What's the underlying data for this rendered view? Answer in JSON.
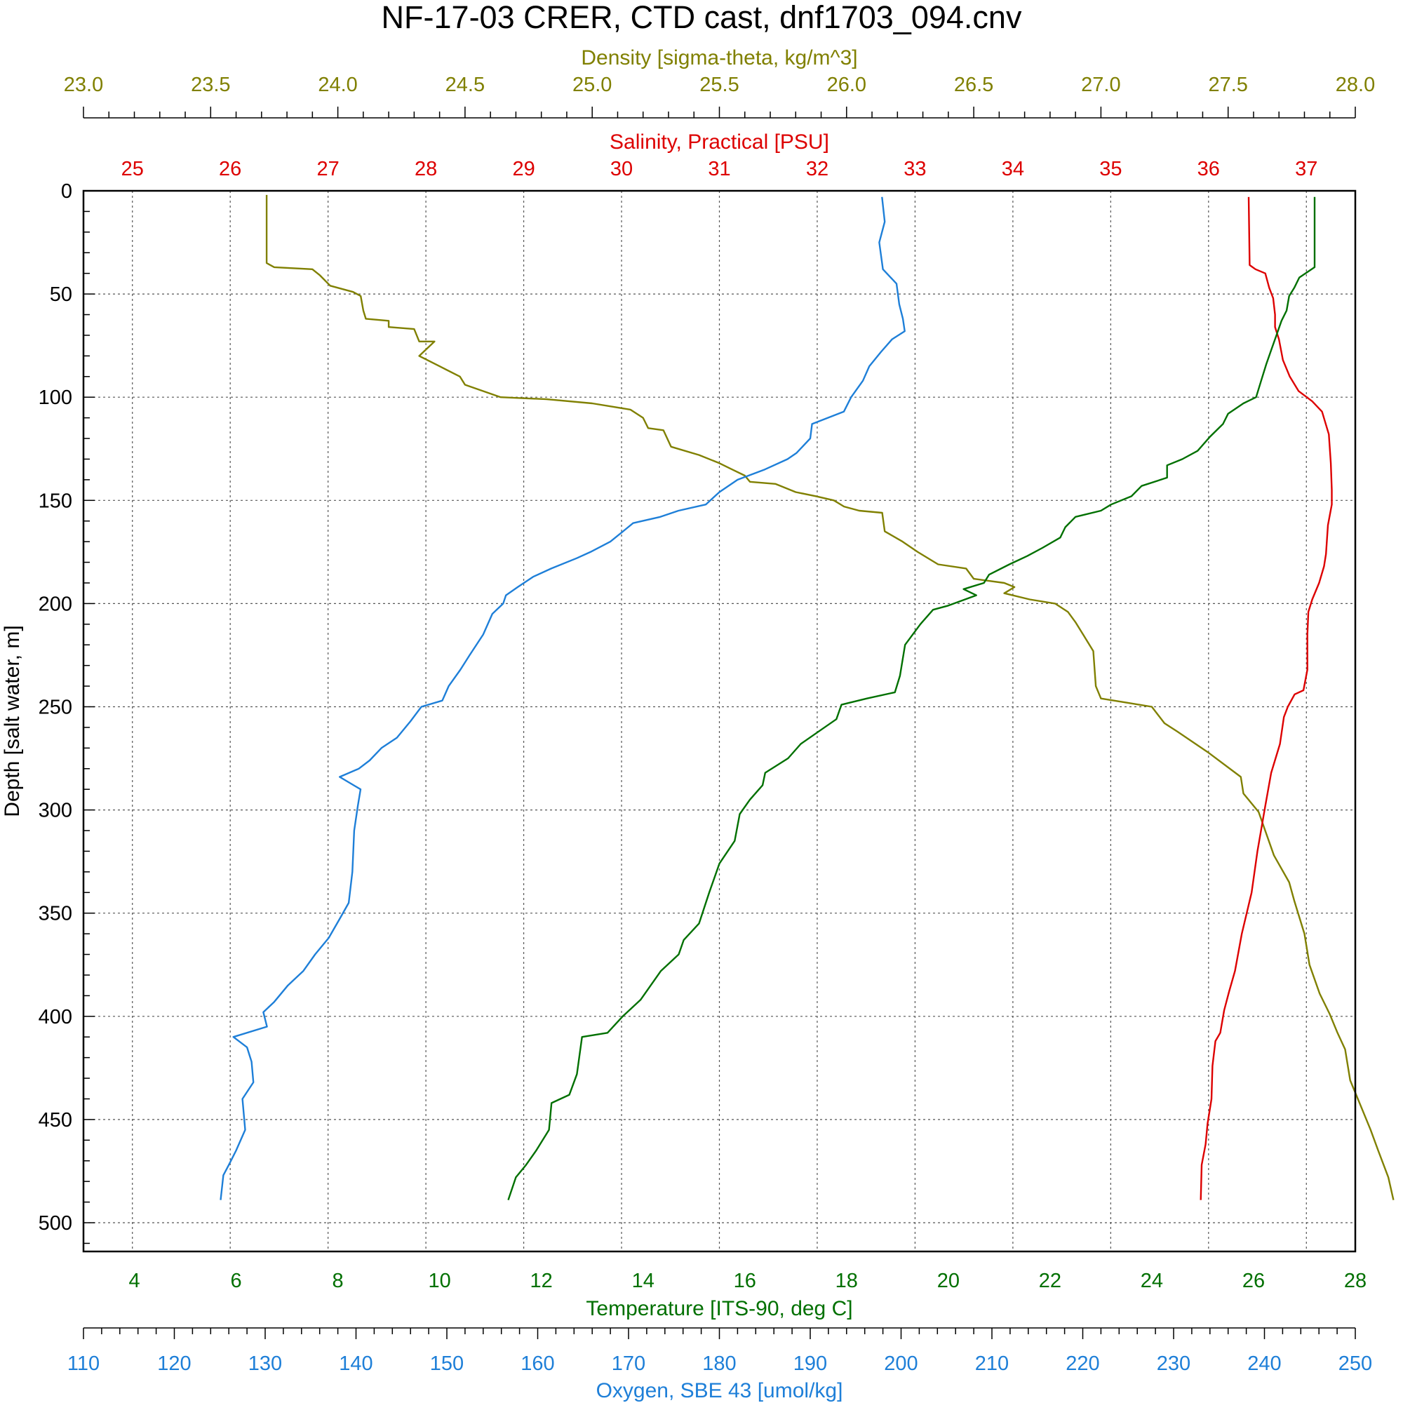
{
  "chart_data": {
    "type": "line",
    "title": "NF-17-03 CRER, CTD cast, dnf1703_094.cnv",
    "y_axis": {
      "label": "Depth [salt water, m]",
      "range": [
        0,
        515
      ],
      "inverted": true,
      "ticks": [
        0,
        50,
        100,
        150,
        200,
        250,
        300,
        350,
        400,
        450,
        500
      ],
      "minor_step": 10,
      "color": "#000000"
    },
    "x_axes": [
      {
        "id": "density",
        "label": "Density [sigma-theta, kg/m^3]",
        "position": "top-outer",
        "range": [
          23.0,
          28.0
        ],
        "ticks": [
          23.0,
          23.5,
          24.0,
          24.5,
          25.0,
          25.5,
          26.0,
          26.5,
          27.0,
          27.5,
          28.0
        ],
        "tick_labels": [
          "23.0",
          "23.5",
          "24.0",
          "24.5",
          "25.0",
          "25.5",
          "26.0",
          "26.5",
          "27.0",
          "27.5",
          "28.0"
        ],
        "minor_step": 0.1,
        "color": "#808000"
      },
      {
        "id": "salinity",
        "label": "Salinity, Practical [PSU]",
        "position": "top-inner",
        "range": [
          24.5,
          37.5
        ],
        "ticks": [
          25,
          26,
          27,
          28,
          29,
          30,
          31,
          32,
          33,
          34,
          35,
          36,
          37
        ],
        "tick_labels": [
          "25",
          "26",
          "27",
          "28",
          "29",
          "30",
          "31",
          "32",
          "33",
          "34",
          "35",
          "36",
          "37"
        ],
        "minor_step": null,
        "color": "#dd0000"
      },
      {
        "id": "temperature",
        "label": "Temperature [ITS-90, deg C]",
        "position": "bottom-inner",
        "range": [
          3,
          28
        ],
        "ticks": [
          4,
          6,
          8,
          10,
          12,
          14,
          16,
          18,
          20,
          22,
          24,
          26,
          28
        ],
        "tick_labels": [
          "4",
          "6",
          "8",
          "10",
          "12",
          "14",
          "16",
          "18",
          "20",
          "22",
          "24",
          "26",
          "28"
        ],
        "minor_step": null,
        "color": "#007000"
      },
      {
        "id": "oxygen",
        "label": "Oxygen, SBE 43 [umol/kg]",
        "position": "bottom-outer",
        "range": [
          110,
          250
        ],
        "ticks": [
          110,
          120,
          130,
          140,
          150,
          160,
          170,
          180,
          190,
          200,
          210,
          220,
          230,
          240,
          250
        ],
        "tick_labels": [
          "110",
          "120",
          "130",
          "140",
          "150",
          "160",
          "170",
          "180",
          "190",
          "200",
          "210",
          "220",
          "230",
          "240",
          "250"
        ],
        "minor_step": 2,
        "color": "#1e7fd8"
      }
    ],
    "grid": true,
    "series": [
      {
        "name": "Density [sigma-theta, kg/m^3]",
        "axis": "density",
        "color": "#808000",
        "points": [
          [
            23.72,
            2
          ],
          [
            23.72,
            35
          ],
          [
            23.75,
            37
          ],
          [
            23.9,
            38
          ],
          [
            23.93,
            41
          ],
          [
            23.97,
            46
          ],
          [
            24.06,
            49
          ],
          [
            24.09,
            51
          ],
          [
            24.1,
            58
          ],
          [
            24.11,
            62
          ],
          [
            24.2,
            63
          ],
          [
            24.2,
            66
          ],
          [
            24.3,
            67
          ],
          [
            24.32,
            73
          ],
          [
            24.38,
            73
          ],
          [
            24.32,
            80
          ],
          [
            24.4,
            85
          ],
          [
            24.48,
            90
          ],
          [
            24.5,
            94
          ],
          [
            24.57,
            97
          ],
          [
            24.64,
            100
          ],
          [
            24.82,
            101
          ],
          [
            25.0,
            103
          ],
          [
            25.15,
            106
          ],
          [
            25.2,
            110
          ],
          [
            25.22,
            115
          ],
          [
            25.28,
            116
          ],
          [
            25.31,
            124
          ],
          [
            25.42,
            128
          ],
          [
            25.5,
            132
          ],
          [
            25.55,
            135
          ],
          [
            25.6,
            138
          ],
          [
            25.62,
            141
          ],
          [
            25.72,
            142
          ],
          [
            25.8,
            146
          ],
          [
            25.88,
            148
          ],
          [
            25.95,
            150
          ],
          [
            25.99,
            153
          ],
          [
            26.05,
            155
          ],
          [
            26.14,
            156
          ],
          [
            26.15,
            165
          ],
          [
            26.22,
            170
          ],
          [
            26.28,
            175
          ],
          [
            26.36,
            181
          ],
          [
            26.47,
            183
          ],
          [
            26.5,
            188
          ],
          [
            26.62,
            190
          ],
          [
            26.66,
            192
          ],
          [
            26.62,
            195
          ],
          [
            26.72,
            198
          ],
          [
            26.82,
            200
          ],
          [
            26.87,
            204
          ],
          [
            26.9,
            209
          ],
          [
            26.93,
            215
          ],
          [
            26.97,
            223
          ],
          [
            26.98,
            240
          ],
          [
            27.0,
            246
          ],
          [
            27.1,
            248
          ],
          [
            27.2,
            250
          ],
          [
            27.25,
            258
          ],
          [
            27.3,
            262
          ],
          [
            27.42,
            272
          ],
          [
            27.55,
            284
          ],
          [
            27.56,
            292
          ],
          [
            27.62,
            301
          ],
          [
            27.68,
            322
          ],
          [
            27.74,
            335
          ],
          [
            27.76,
            344
          ],
          [
            27.8,
            360
          ],
          [
            27.82,
            375
          ],
          [
            27.86,
            389
          ],
          [
            27.9,
            399
          ],
          [
            27.93,
            408
          ],
          [
            27.96,
            416
          ],
          [
            27.98,
            431
          ],
          [
            28.02,
            443
          ],
          [
            28.06,
            455
          ],
          [
            28.09,
            465
          ],
          [
            28.13,
            478
          ],
          [
            28.15,
            489
          ]
        ]
      },
      {
        "name": "Salinity, Practical [PSU]",
        "axis": "salinity",
        "color": "#dd0000",
        "points": [
          [
            36.41,
            3
          ],
          [
            36.42,
            36
          ],
          [
            36.48,
            38
          ],
          [
            36.58,
            40
          ],
          [
            36.62,
            47
          ],
          [
            36.66,
            52
          ],
          [
            36.68,
            60
          ],
          [
            36.68,
            66
          ],
          [
            36.72,
            72
          ],
          [
            36.76,
            82
          ],
          [
            36.83,
            90
          ],
          [
            36.92,
            97
          ],
          [
            37.06,
            102
          ],
          [
            37.16,
            107
          ],
          [
            37.23,
            118
          ],
          [
            37.25,
            132
          ],
          [
            37.26,
            145
          ],
          [
            37.26,
            152
          ],
          [
            37.22,
            162
          ],
          [
            37.2,
            176
          ],
          [
            37.18,
            182
          ],
          [
            37.13,
            190
          ],
          [
            37.06,
            198
          ],
          [
            37.02,
            204
          ],
          [
            37.01,
            215
          ],
          [
            37.01,
            232
          ],
          [
            36.97,
            242
          ],
          [
            36.88,
            244
          ],
          [
            36.81,
            250
          ],
          [
            36.77,
            255
          ],
          [
            36.73,
            268
          ],
          [
            36.64,
            282
          ],
          [
            36.58,
            298
          ],
          [
            36.5,
            320
          ],
          [
            36.44,
            340
          ],
          [
            36.34,
            360
          ],
          [
            36.27,
            378
          ],
          [
            36.21,
            388
          ],
          [
            36.16,
            397
          ],
          [
            36.12,
            408
          ],
          [
            36.07,
            412
          ],
          [
            36.04,
            424
          ],
          [
            36.03,
            440
          ],
          [
            35.99,
            452
          ],
          [
            35.97,
            462
          ],
          [
            35.93,
            472
          ],
          [
            35.92,
            489
          ]
        ]
      },
      {
        "name": "Temperature [ITS-90, deg C]",
        "axis": "temperature",
        "color": "#007000",
        "points": [
          [
            27.2,
            3
          ],
          [
            27.2,
            37
          ],
          [
            26.9,
            42
          ],
          [
            26.8,
            47
          ],
          [
            26.7,
            51
          ],
          [
            26.65,
            58
          ],
          [
            26.55,
            63
          ],
          [
            26.45,
            70
          ],
          [
            26.35,
            77
          ],
          [
            26.25,
            84
          ],
          [
            26.15,
            92
          ],
          [
            26.05,
            100
          ],
          [
            25.8,
            103
          ],
          [
            25.5,
            108
          ],
          [
            25.4,
            113
          ],
          [
            25.15,
            119
          ],
          [
            24.9,
            126
          ],
          [
            24.6,
            130
          ],
          [
            24.3,
            133
          ],
          [
            24.3,
            139
          ],
          [
            23.8,
            143
          ],
          [
            23.6,
            148
          ],
          [
            23.2,
            152
          ],
          [
            23.0,
            155
          ],
          [
            22.5,
            158
          ],
          [
            22.3,
            163
          ],
          [
            22.2,
            168
          ],
          [
            21.85,
            173
          ],
          [
            21.55,
            177
          ],
          [
            21.2,
            181
          ],
          [
            20.8,
            186
          ],
          [
            20.7,
            190
          ],
          [
            20.3,
            193
          ],
          [
            20.55,
            196
          ],
          [
            20.0,
            201
          ],
          [
            19.7,
            203
          ],
          [
            19.45,
            210
          ],
          [
            19.15,
            220
          ],
          [
            19.05,
            235
          ],
          [
            18.95,
            243
          ],
          [
            18.4,
            246
          ],
          [
            17.9,
            249
          ],
          [
            17.8,
            256
          ],
          [
            17.45,
            262
          ],
          [
            17.1,
            268
          ],
          [
            16.85,
            275
          ],
          [
            16.4,
            282
          ],
          [
            16.35,
            288
          ],
          [
            16.1,
            295
          ],
          [
            15.9,
            302
          ],
          [
            15.8,
            315
          ],
          [
            15.5,
            326
          ],
          [
            15.3,
            340
          ],
          [
            15.1,
            355
          ],
          [
            14.8,
            363
          ],
          [
            14.7,
            370
          ],
          [
            14.35,
            378
          ],
          [
            14.15,
            385
          ],
          [
            13.95,
            392
          ],
          [
            13.6,
            400
          ],
          [
            13.3,
            408
          ],
          [
            12.8,
            410
          ],
          [
            12.7,
            428
          ],
          [
            12.55,
            438
          ],
          [
            12.2,
            442
          ],
          [
            12.15,
            455
          ],
          [
            11.9,
            465
          ],
          [
            11.7,
            472
          ],
          [
            11.5,
            478
          ],
          [
            11.35,
            489
          ]
        ]
      },
      {
        "name": "Oxygen, SBE 43 [umol/kg]",
        "axis": "oxygen",
        "color": "#1e7fd8",
        "points": [
          [
            197.9,
            3
          ],
          [
            198.2,
            15
          ],
          [
            197.6,
            25
          ],
          [
            198.0,
            38
          ],
          [
            199.5,
            45
          ],
          [
            199.8,
            55
          ],
          [
            200.2,
            62
          ],
          [
            200.4,
            68
          ],
          [
            199.0,
            72
          ],
          [
            197.8,
            78
          ],
          [
            196.5,
            85
          ],
          [
            195.8,
            92
          ],
          [
            194.5,
            100
          ],
          [
            193.7,
            107
          ],
          [
            190.2,
            113
          ],
          [
            190.0,
            120
          ],
          [
            188.5,
            127
          ],
          [
            187.5,
            130
          ],
          [
            185.0,
            135
          ],
          [
            182.0,
            140
          ],
          [
            180.0,
            146
          ],
          [
            178.5,
            152
          ],
          [
            175.5,
            155
          ],
          [
            173.5,
            158
          ],
          [
            170.5,
            161
          ],
          [
            169.4,
            165
          ],
          [
            168.0,
            170
          ],
          [
            165.8,
            175
          ],
          [
            164.3,
            178
          ],
          [
            161.5,
            183
          ],
          [
            159.5,
            187
          ],
          [
            157.8,
            192
          ],
          [
            156.5,
            196
          ],
          [
            156.2,
            200
          ],
          [
            155.0,
            205
          ],
          [
            154.0,
            215
          ],
          [
            152.5,
            225
          ],
          [
            151.5,
            232
          ],
          [
            150.2,
            240
          ],
          [
            149.5,
            247
          ],
          [
            147.2,
            250
          ],
          [
            146.0,
            257
          ],
          [
            144.5,
            265
          ],
          [
            142.8,
            270
          ],
          [
            141.5,
            276
          ],
          [
            140.3,
            280
          ],
          [
            138.2,
            284
          ],
          [
            140.5,
            290
          ],
          [
            140.2,
            298
          ],
          [
            139.8,
            310
          ],
          [
            139.6,
            330
          ],
          [
            139.2,
            345
          ],
          [
            138.3,
            352
          ],
          [
            137.0,
            362
          ],
          [
            135.5,
            370
          ],
          [
            134.2,
            378
          ],
          [
            132.5,
            385
          ],
          [
            131.0,
            393
          ],
          [
            129.8,
            398
          ],
          [
            130.2,
            405
          ],
          [
            126.5,
            410
          ],
          [
            128.0,
            415
          ],
          [
            128.5,
            422
          ],
          [
            128.7,
            432
          ],
          [
            127.5,
            440
          ],
          [
            127.8,
            455
          ],
          [
            126.8,
            465
          ],
          [
            126.0,
            472
          ],
          [
            125.4,
            477
          ],
          [
            125.1,
            489
          ]
        ]
      }
    ]
  }
}
